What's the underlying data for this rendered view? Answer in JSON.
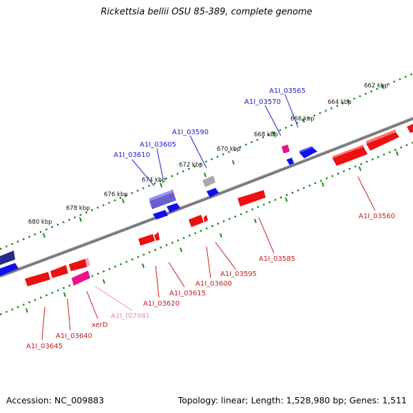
{
  "title": "Rickettsia bellii OSU 85-389, complete genome",
  "footer": {
    "accession": "Accession: NC_009883",
    "summary": "Topology: linear; Length: 1,528,980 bp; Genes: 1,511"
  },
  "colors": {
    "forward_gene": "#1010ee",
    "reverse_gene": "#ee1010",
    "trna": "#e8128a",
    "pseudo": "#aaaaaa",
    "overlap": "#6a5fd0",
    "backbone": "#808080",
    "tick": "#1a8a1a",
    "forward_label": "#1a1acc",
    "reverse_label": "#cc1a1a",
    "trna_label": "#f08cc0"
  },
  "scale": {
    "unit": "kbp",
    "ticks_kbp": [
      662,
      664,
      666,
      668,
      670,
      672,
      674,
      676,
      678,
      680
    ],
    "tick_labels": [
      "662 kbp",
      "664 kbp",
      "666 kbp",
      "668 kbp",
      "670 kbp",
      "672 kbp",
      "674 kbp",
      "676 kbp",
      "678 kbp",
      "680 kbp"
    ]
  },
  "genes": [
    {
      "id": "A1I_03565",
      "strand": "forward"
    },
    {
      "id": "A1I_03570",
      "strand": "forward"
    },
    {
      "id": "A1I_03590",
      "strand": "forward"
    },
    {
      "id": "A1I_03605",
      "strand": "forward"
    },
    {
      "id": "A1I_03610",
      "strand": "forward"
    },
    {
      "id": "A1I_03560",
      "strand": "reverse"
    },
    {
      "id": "A1I_03585",
      "strand": "reverse"
    },
    {
      "id": "A1I_03595",
      "strand": "reverse"
    },
    {
      "id": "A1I_03600",
      "strand": "reverse"
    },
    {
      "id": "A1I_03615",
      "strand": "reverse"
    },
    {
      "id": "A1I_03620",
      "strand": "reverse"
    },
    {
      "id": "A1I_t07981",
      "strand": "reverse"
    },
    {
      "id": "xerD",
      "strand": "reverse"
    },
    {
      "id": "A1I_03640",
      "strand": "reverse"
    },
    {
      "id": "A1I_03645",
      "strand": "reverse"
    }
  ]
}
